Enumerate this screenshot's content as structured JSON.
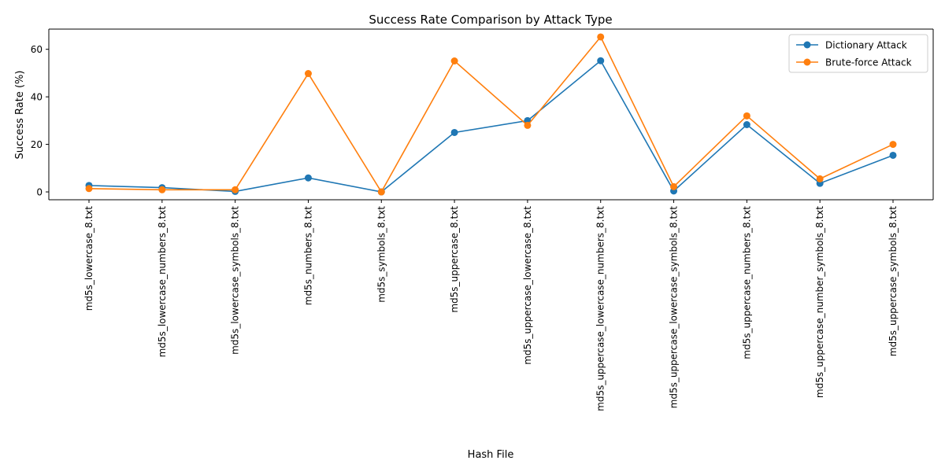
{
  "chart_data": {
    "type": "line",
    "title": "Success Rate Comparison by Attack Type",
    "xlabel": "Hash File",
    "ylabel": "Success Rate (%)",
    "categories": [
      "md5s_lowercase_8.txt",
      "md5s_lowercase_numbers_8.txt",
      "md5s_lowercase_symbols_8.txt",
      "md5s_numbers_8.txt",
      "md5s_symbols_8.txt",
      "md5s_uppercase_8.txt",
      "md5s_uppercase_lowercase_8.txt",
      "md5s_uppercase_lowercase_numbers_8.txt",
      "md5s_uppercase_lowercase_symbols_8.txt",
      "md5s_uppercase_numbers_8.txt",
      "md5s_uppercase_number_symbols_8.txt",
      "md5s_uppercase_symbols_8.txt"
    ],
    "series": [
      {
        "name": "Dictionary Attack",
        "color": "#1f77b4",
        "marker": "circle",
        "values": [
          2.7,
          1.8,
          0.2,
          5.9,
          0.0,
          25.0,
          30.0,
          55.2,
          0.4,
          28.3,
          3.6,
          15.4
        ]
      },
      {
        "name": "Brute-force Attack",
        "color": "#ff7f0e",
        "marker": "circle",
        "values": [
          1.4,
          0.9,
          0.9,
          49.8,
          0.0,
          55.1,
          28.0,
          65.2,
          2.2,
          32.0,
          5.5,
          20.0
        ]
      }
    ],
    "ylim": [
      -3.3,
      68.5
    ],
    "yticks": [
      0,
      20,
      40,
      60
    ],
    "legend": "upper right",
    "grid": false
  }
}
